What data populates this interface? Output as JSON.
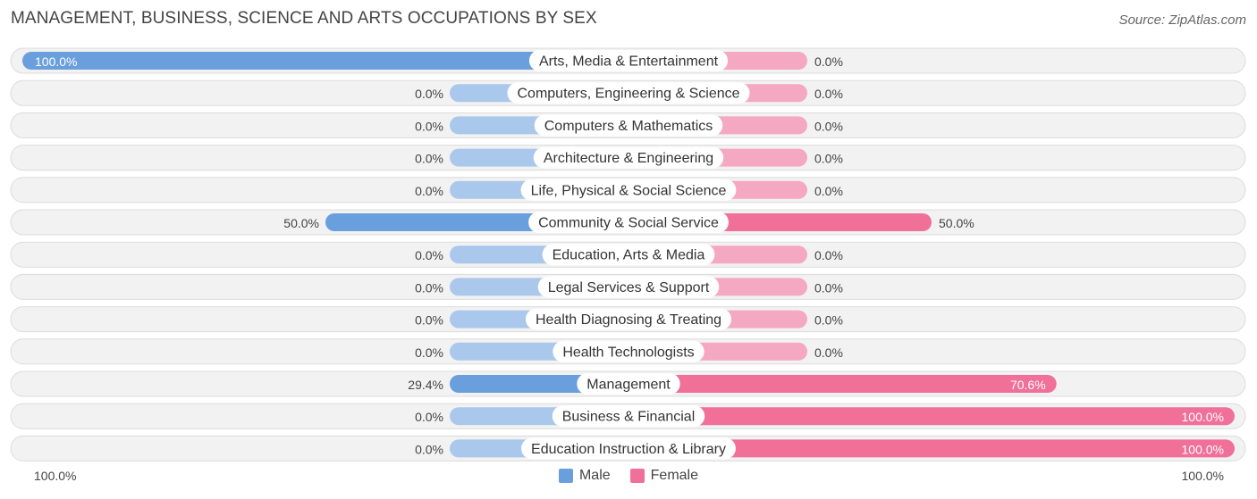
{
  "header": {
    "title": "MANAGEMENT, BUSINESS, SCIENCE AND ARTS OCCUPATIONS BY SEX",
    "source": "Source: ZipAtlas.com"
  },
  "axis": {
    "left_label": "100.0%",
    "right_label": "100.0%"
  },
  "colors": {
    "male": "#6a9fdd",
    "male_light": "#aac8ec",
    "female": "#f0709a",
    "female_light": "#f5a8c2",
    "row_bg": "#f2f2f2",
    "row_border": "#dcdcdc"
  },
  "chart_data": {
    "type": "bar",
    "orientation": "horizontal-diverging",
    "xlim": [
      0,
      100
    ],
    "legend_position": "bottom-center",
    "series": [
      {
        "name": "Male",
        "values": [
          100.0,
          0.0,
          0.0,
          0.0,
          0.0,
          50.0,
          0.0,
          0.0,
          0.0,
          0.0,
          29.4,
          0.0,
          0.0
        ]
      },
      {
        "name": "Female",
        "values": [
          0.0,
          0.0,
          0.0,
          0.0,
          0.0,
          50.0,
          0.0,
          0.0,
          0.0,
          0.0,
          70.6,
          100.0,
          100.0
        ]
      }
    ],
    "categories": [
      "Arts, Media & Entertainment",
      "Computers, Engineering & Science",
      "Computers & Mathematics",
      "Architecture & Engineering",
      "Life, Physical & Social Science",
      "Community & Social Service",
      "Education, Arts & Media",
      "Legal Services & Support",
      "Health Diagnosing & Treating",
      "Health Technologists",
      "Management",
      "Business & Financial",
      "Education Instruction & Library"
    ],
    "male_labels": [
      "100.0%",
      "0.0%",
      "0.0%",
      "0.0%",
      "0.0%",
      "50.0%",
      "0.0%",
      "0.0%",
      "0.0%",
      "0.0%",
      "29.4%",
      "0.0%",
      "0.0%"
    ],
    "female_labels": [
      "0.0%",
      "0.0%",
      "0.0%",
      "0.0%",
      "0.0%",
      "50.0%",
      "0.0%",
      "0.0%",
      "0.0%",
      "0.0%",
      "70.6%",
      "100.0%",
      "100.0%"
    ]
  }
}
